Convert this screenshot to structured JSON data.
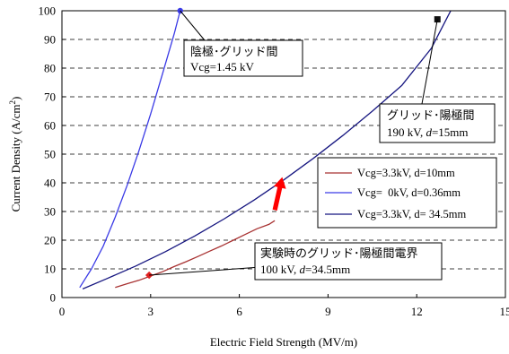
{
  "chart_data": {
    "type": "line",
    "xlabel": "Electric Field Strength (MV/m)",
    "ylabel": "Current Density (A/cm",
    "ylabel_sup": "2",
    "ylabel_tail": ")",
    "xlim": [
      0,
      15
    ],
    "ylim": [
      0,
      100
    ],
    "x_ticks": [
      "0",
      "3",
      "6",
      "9",
      "12",
      "15"
    ],
    "y_ticks": [
      "0",
      "10",
      "20",
      "30",
      "40",
      "50",
      "60",
      "70",
      "80",
      "90",
      "100"
    ],
    "grid": "horizontal dashed",
    "legend_position": "right",
    "series": [
      {
        "name": "Vcg=3.3kV, d=10mm",
        "color": "#a83232",
        "x": [
          1.8,
          2.2,
          2.6,
          3.0,
          3.4,
          3.8,
          4.2,
          4.6,
          5.0,
          5.4,
          5.8,
          6.2,
          6.6,
          7.0,
          7.2
        ],
        "y": [
          3.5,
          4.8,
          6.0,
          7.5,
          9.0,
          10.8,
          12.5,
          14.3,
          16.2,
          18.0,
          20.0,
          22.0,
          24.0,
          25.5,
          26.8
        ]
      },
      {
        "name": "Vcg=  0kV, d=0.36mm",
        "color": "#3a3ae6",
        "x": [
          0.6,
          1.0,
          1.4,
          1.8,
          2.2,
          2.6,
          3.0,
          3.4,
          3.8,
          4.0
        ],
        "y": [
          3.5,
          10.0,
          18.0,
          28.0,
          39.0,
          51.0,
          64.0,
          78.0,
          92.0,
          100.0
        ]
      },
      {
        "name": "Vcg=3.3kV, d= 34.5mm",
        "color": "#161680",
        "x": [
          0.7,
          1.5,
          2.5,
          3.5,
          4.5,
          5.5,
          6.5,
          7.5,
          8.5,
          9.5,
          10.5,
          11.5,
          12.5,
          13.2
        ],
        "y": [
          3.0,
          6.5,
          11.0,
          16.0,
          21.5,
          27.5,
          34.0,
          41.0,
          48.5,
          56.5,
          65.0,
          74.0,
          87.0,
          101.0
        ]
      }
    ],
    "markers": [
      {
        "label": "cathode-grid",
        "x": 4.0,
        "y": 100.0,
        "color": "#3a3ae6",
        "shape": "circle"
      },
      {
        "label": "grid-anode",
        "x": 12.7,
        "y": 97.0,
        "color": "#111111",
        "shape": "square"
      },
      {
        "label": "experiment",
        "x": 2.95,
        "y": 7.8,
        "color": "#e02020",
        "shape": "diamond"
      }
    ],
    "annotations": [
      {
        "id": "cathode",
        "line1": "陰極･グリッド間",
        "line2": "Vcg=1.45 kV"
      },
      {
        "id": "anode",
        "line1": "グリッド･陽極間",
        "line2_pre": "190 kV, ",
        "line2_italic": "d",
        "line2_post": "=15mm"
      },
      {
        "id": "exp",
        "line1": "実験時のグリッド･陽極間電界",
        "line2_pre": "100 kV, ",
        "line2_italic": "d",
        "line2_post": "=34.5mm"
      }
    ],
    "arrow": {
      "color": "#ff0000",
      "from": [
        7.2,
        30.5
      ],
      "to": [
        7.45,
        42.0
      ]
    }
  }
}
